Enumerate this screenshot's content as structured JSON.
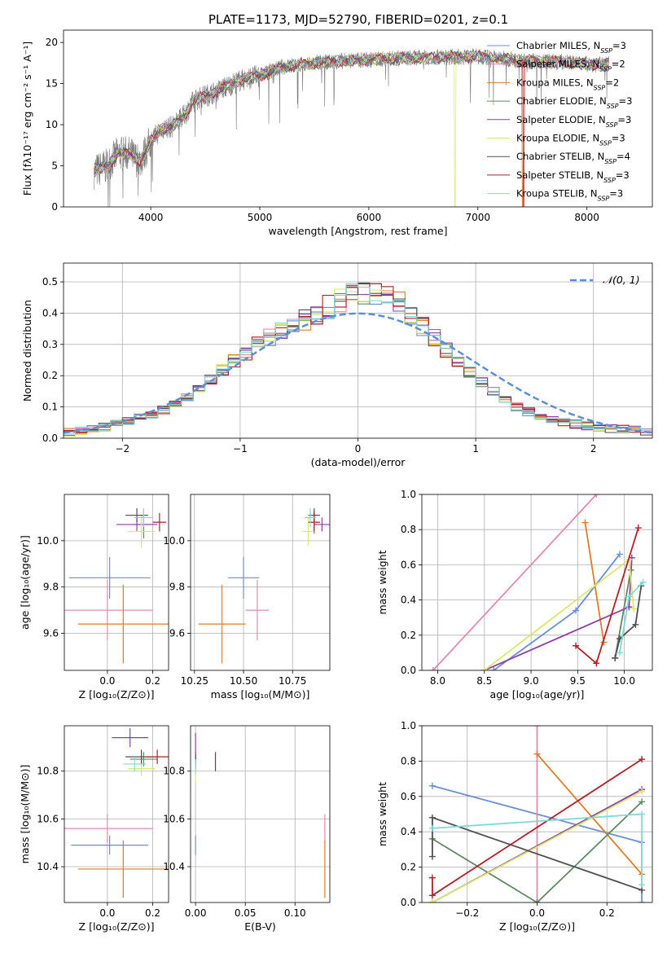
{
  "title": "PLATE=1173, MJD=52790, FIBERID=0201, z=0.1",
  "colors": {
    "Chabrier MILES": "#6b8fd6",
    "Salpeter MILES": "#e58aab",
    "Kroupa MILES": "#e07b26",
    "Chabrier ELODIE": "#5f8a62",
    "Salpeter ELODIE": "#8e3fa6",
    "Kroupa ELODIE": "#d9e86a",
    "Chabrier STELIB": "#505050",
    "Salpeter STELIB": "#b3202a",
    "Kroupa STELIB": "#7fdad6"
  },
  "chart_data": [
    {
      "type": "line",
      "xlabel": "wavelength [Angstrom, rest frame]",
      "ylabel": "Flux [fλ10⁻¹⁷ erg cm⁻² s⁻¹ A⁻¹]",
      "xlim": [
        3200,
        8600
      ],
      "ylim": [
        0,
        21.5
      ],
      "xticks": [
        "4000",
        "5000",
        "6000",
        "7000",
        "8000"
      ],
      "yticks": [
        "0",
        "5",
        "10",
        "15",
        "20"
      ],
      "grid": false,
      "legend_position": "top-right",
      "legend": [
        {
          "name": "Chabrier MILES",
          "nssp": "3"
        },
        {
          "name": "Salpeter MILES",
          "nssp": "2"
        },
        {
          "name": "Kroupa MILES",
          "nssp": "2"
        },
        {
          "name": "Chabrier ELODIE",
          "nssp": "3"
        },
        {
          "name": "Salpeter ELODIE",
          "nssp": "3"
        },
        {
          "name": "Kroupa ELODIE",
          "nssp": "3"
        },
        {
          "name": "Chabrier STELIB",
          "nssp": "4"
        },
        {
          "name": "Salpeter STELIB",
          "nssp": "3"
        },
        {
          "name": "Kroupa STELIB",
          "nssp": "3"
        }
      ],
      "continuum": {
        "x": [
          3480,
          3600,
          3700,
          3800,
          3900,
          4000,
          4100,
          4200,
          4300,
          4400,
          4600,
          4800,
          5000,
          5200,
          5500,
          5800,
          6000,
          6300,
          6600,
          7000,
          7400,
          7800,
          8100,
          8200
        ],
        "y": [
          4.3,
          5.0,
          6.5,
          6.5,
          5.5,
          8.0,
          9.5,
          9.8,
          11.0,
          13.0,
          14.0,
          15.3,
          16.0,
          17.0,
          17.5,
          17.8,
          17.9,
          18.1,
          18.2,
          18.3,
          17.8,
          17.6,
          17.3,
          17.4
        ]
      },
      "dropouts": [
        {
          "series": "Kroupa ELODIE",
          "x": 6790
        },
        {
          "series": "Kroupa MILES",
          "x": 7410
        },
        {
          "series": "Salpeter STELIB",
          "x": 7420
        }
      ]
    },
    {
      "type": "histogram",
      "xlabel": "(data-model)/error",
      "ylabel": "Normed distribution",
      "xlim": [
        -2.5,
        2.5
      ],
      "ylim": [
        0,
        0.56
      ],
      "xticks": [
        "−2",
        "−1",
        "0",
        "1",
        "2"
      ],
      "yticks": [
        "0.0",
        "0.1",
        "0.2",
        "0.3",
        "0.4",
        "0.5"
      ],
      "grid": true,
      "legend_position": "top-right",
      "legend": "𝒩(0, 1)",
      "reference_curve": "N(0,1)",
      "bin_edges_start": -2.5,
      "bin_width": 0.1,
      "envelope": [
        0.02,
        0.025,
        0.03,
        0.035,
        0.045,
        0.055,
        0.065,
        0.075,
        0.09,
        0.11,
        0.13,
        0.16,
        0.19,
        0.22,
        0.25,
        0.27,
        0.3,
        0.32,
        0.34,
        0.36,
        0.38,
        0.4,
        0.42,
        0.44,
        0.46,
        0.47,
        0.47,
        0.46,
        0.43,
        0.4,
        0.36,
        0.32,
        0.28,
        0.24,
        0.21,
        0.18,
        0.15,
        0.12,
        0.1,
        0.085,
        0.07,
        0.06,
        0.05,
        0.045,
        0.04,
        0.035,
        0.03,
        0.028,
        0.025,
        0.022
      ]
    },
    {
      "type": "errorbar",
      "xlabel": "Z [log₁₀(Z/Z⊙)]",
      "ylabel": "age  [log₁₀(age/yr)]",
      "xlim": [
        -0.19,
        0.27
      ],
      "ylim": [
        9.44,
        10.2
      ],
      "xticks": [
        "0.0",
        "0.2"
      ],
      "yticks": [
        "9.6",
        "9.8",
        "10.0"
      ],
      "grid": true,
      "points": [
        {
          "series": "Chabrier MILES",
          "x": 0.01,
          "y": 9.84,
          "xerr": 0.18,
          "yerr": 0.09
        },
        {
          "series": "Salpeter MILES",
          "x": 0.0,
          "y": 9.7,
          "xerr": 0.2,
          "yerr": 0.13
        },
        {
          "series": "Kroupa MILES",
          "x": 0.07,
          "y": 9.64,
          "xerr": 0.2,
          "yerr": 0.17
        },
        {
          "series": "Chabrier ELODIE",
          "x": 0.16,
          "y": 10.07,
          "xerr": 0.05,
          "yerr": 0.06
        },
        {
          "series": "Salpeter ELODIE",
          "x": 0.13,
          "y": 10.07,
          "xerr": 0.09,
          "yerr": 0.03
        },
        {
          "series": "Kroupa ELODIE",
          "x": 0.15,
          "y": 10.04,
          "xerr": 0.06,
          "yerr": 0.07
        },
        {
          "series": "Chabrier STELIB",
          "x": 0.13,
          "y": 10.11,
          "xerr": 0.05,
          "yerr": 0.03
        },
        {
          "series": "Salpeter STELIB",
          "x": 0.23,
          "y": 10.08,
          "xerr": 0.03,
          "yerr": 0.04
        },
        {
          "series": "Kroupa STELIB",
          "x": 0.16,
          "y": 10.1,
          "xerr": 0.04,
          "yerr": 0.04
        }
      ]
    },
    {
      "type": "errorbar",
      "xlabel": "mass [log₁₀(M/M⊙)]",
      "ylabel": "",
      "xlim": [
        10.23,
        10.94
      ],
      "ylim": [
        9.44,
        10.2
      ],
      "xticks": [
        "10.25",
        "10.50",
        "10.75"
      ],
      "yticks": [
        "9.6",
        "9.8",
        "10.0"
      ],
      "grid": true,
      "points": [
        {
          "series": "Chabrier MILES",
          "x": 10.5,
          "y": 9.84,
          "xerr": 0.08,
          "yerr": 0.09
        },
        {
          "series": "Salpeter MILES",
          "x": 10.57,
          "y": 9.7,
          "xerr": 0.06,
          "yerr": 0.13
        },
        {
          "series": "Kroupa MILES",
          "x": 10.39,
          "y": 9.64,
          "xerr": 0.12,
          "yerr": 0.17
        },
        {
          "series": "Chabrier ELODIE",
          "x": 10.86,
          "y": 10.08,
          "xerr": 0.03,
          "yerr": 0.05
        },
        {
          "series": "Salpeter ELODIE",
          "x": 10.9,
          "y": 10.07,
          "xerr": 0.04,
          "yerr": 0.03
        },
        {
          "series": "Kroupa ELODIE",
          "x": 10.83,
          "y": 10.04,
          "xerr": 0.03,
          "yerr": 0.06
        },
        {
          "series": "Chabrier STELIB",
          "x": 10.86,
          "y": 10.11,
          "xerr": 0.03,
          "yerr": 0.03
        },
        {
          "series": "Salpeter STELIB",
          "x": 10.86,
          "y": 10.08,
          "xerr": 0.03,
          "yerr": 0.04
        },
        {
          "series": "Kroupa STELIB",
          "x": 10.84,
          "y": 10.1,
          "xerr": 0.03,
          "yerr": 0.04
        }
      ]
    },
    {
      "type": "line",
      "xlabel": "age  [log₁₀(age/yr)]",
      "ylabel": "mass weight",
      "xlim": [
        7.83,
        10.3
      ],
      "ylim": [
        0,
        1
      ],
      "xticks": [
        "8.0",
        "8.5",
        "9.0",
        "9.5",
        "10.0"
      ],
      "yticks": [
        "0.0",
        "0.2",
        "0.4",
        "0.6",
        "0.8",
        "1.0"
      ],
      "grid": true,
      "series": [
        {
          "name": "Chabrier MILES",
          "x": [
            8.6,
            9.48,
            9.95
          ],
          "y": [
            0.0,
            0.34,
            0.66
          ]
        },
        {
          "name": "Salpeter MILES",
          "x": [
            7.95,
            9.7
          ],
          "y": [
            0.0,
            1.0
          ]
        },
        {
          "name": "Kroupa MILES",
          "x": [
            9.58,
            9.78
          ],
          "y": [
            0.84,
            0.16
          ]
        },
        {
          "name": "Chabrier ELODIE",
          "x": [
            9.9,
            10.07
          ],
          "y": [
            0.07,
            0.57
          ]
        },
        {
          "name": "Salpeter ELODIE",
          "x": [
            8.5,
            10.05,
            10.08
          ],
          "y": [
            0.0,
            0.36,
            0.64
          ]
        },
        {
          "name": "Kroupa ELODIE",
          "x": [
            8.5,
            10.05,
            10.1
          ],
          "y": [
            0.0,
            0.63,
            0.35
          ]
        },
        {
          "name": "Chabrier STELIB",
          "x": [
            9.9,
            9.95,
            10.12,
            10.18
          ],
          "y": [
            0.07,
            0.18,
            0.26,
            0.48
          ]
        },
        {
          "name": "Salpeter STELIB",
          "x": [
            9.48,
            9.7,
            10.15
          ],
          "y": [
            0.14,
            0.04,
            0.81
          ]
        },
        {
          "name": "Kroupa STELIB",
          "x": [
            9.95,
            10.05,
            10.2
          ],
          "y": [
            0.1,
            0.42,
            0.5
          ]
        }
      ]
    },
    {
      "type": "errorbar",
      "xlabel": "Z [log₁₀(Z/Z⊙)]",
      "ylabel": "mass [log₁₀(M/M⊙)]",
      "xlim": [
        -0.19,
        0.27
      ],
      "ylim": [
        10.25,
        10.99
      ],
      "xticks": [
        "0.0",
        "0.2"
      ],
      "yticks": [
        "10.4",
        "10.6",
        "10.8"
      ],
      "grid": true,
      "points": [
        {
          "series": "Chabrier MILES",
          "x": 0.01,
          "y": 10.49,
          "xerr": 0.17,
          "yerr": 0.04
        },
        {
          "series": "Salpeter MILES",
          "x": 0.0,
          "y": 10.56,
          "xerr": 0.2,
          "yerr": 0.06
        },
        {
          "series": "Kroupa MILES",
          "x": 0.07,
          "y": 10.39,
          "xerr": 0.2,
          "yerr": 0.12
        },
        {
          "series": "Chabrier ELODIE",
          "x": 0.16,
          "y": 10.85,
          "xerr": 0.06,
          "yerr": 0.03
        },
        {
          "series": "Salpeter ELODIE",
          "x": 0.1,
          "y": 10.94,
          "xerr": 0.08,
          "yerr": 0.04
        },
        {
          "series": "Kroupa ELODIE",
          "x": 0.15,
          "y": 10.81,
          "xerr": 0.06,
          "yerr": 0.03
        },
        {
          "series": "Chabrier STELIB",
          "x": 0.15,
          "y": 10.86,
          "xerr": 0.07,
          "yerr": 0.03
        },
        {
          "series": "Salpeter STELIB",
          "x": 0.22,
          "y": 10.86,
          "xerr": 0.05,
          "yerr": 0.03
        },
        {
          "series": "Kroupa STELIB",
          "x": 0.12,
          "y": 10.83,
          "xerr": 0.05,
          "yerr": 0.03
        }
      ]
    },
    {
      "type": "errorbar",
      "xlabel": "E(B-V)",
      "ylabel": "",
      "xlim": [
        -0.005,
        0.135
      ],
      "ylim": [
        10.25,
        10.99
      ],
      "xticks": [
        "0.00",
        "0.05",
        "0.10"
      ],
      "yticks": [
        "10.4",
        "10.6",
        "10.8"
      ],
      "grid": true,
      "points": [
        {
          "series": "Chabrier MILES",
          "x": 0.0,
          "y": 10.49,
          "xerr": 0,
          "yerr": 0.04
        },
        {
          "series": "Salpeter MILES",
          "x": 0.13,
          "y": 10.56,
          "xerr": 0,
          "yerr": 0.06
        },
        {
          "series": "Kroupa MILES",
          "x": 0.13,
          "y": 10.39,
          "xerr": 0,
          "yerr": 0.12
        },
        {
          "series": "Chabrier ELODIE",
          "x": 0.0,
          "y": 10.85,
          "xerr": 0,
          "yerr": 0.03
        },
        {
          "series": "Salpeter ELODIE",
          "x": 0.0,
          "y": 10.9,
          "xerr": 0,
          "yerr": 0.06
        },
        {
          "series": "Kroupa ELODIE",
          "x": 0.0,
          "y": 10.78,
          "xerr": 0,
          "yerr": 0.03
        },
        {
          "series": "Chabrier STELIB",
          "x": 0.0,
          "y": 10.84,
          "xerr": 0,
          "yerr": 0.03
        },
        {
          "series": "Salpeter STELIB",
          "x": 0.02,
          "y": 10.84,
          "xerr": 0,
          "yerr": 0.04
        },
        {
          "series": "Kroupa STELIB",
          "x": 0.0,
          "y": 10.82,
          "xerr": 0,
          "yerr": 0.03
        }
      ]
    },
    {
      "type": "line",
      "xlabel": "Z [log₁₀(Z/Z⊙)]",
      "ylabel": "mass weight",
      "xlim": [
        -0.33,
        0.33
      ],
      "ylim": [
        0,
        1
      ],
      "xticks": [
        "−0.2",
        "0.0",
        "0.2"
      ],
      "yticks": [
        "0.0",
        "0.2",
        "0.4",
        "0.6",
        "0.8",
        "1.0"
      ],
      "grid": true,
      "series": [
        {
          "name": "Chabrier MILES",
          "x": [
            -0.3,
            0.3,
            0.3
          ],
          "y": [
            0.66,
            0.34,
            0.0
          ]
        },
        {
          "name": "Salpeter MILES",
          "x": [
            0.0,
            0.0
          ],
          "y": [
            0.0,
            1.0
          ]
        },
        {
          "name": "Kroupa MILES",
          "x": [
            0.0,
            0.3
          ],
          "y": [
            0.84,
            0.16
          ]
        },
        {
          "name": "Chabrier ELODIE",
          "x": [
            -0.3,
            0.0,
            0.3
          ],
          "y": [
            0.36,
            0.0,
            0.57
          ]
        },
        {
          "name": "Salpeter ELODIE",
          "x": [
            -0.3,
            0.3
          ],
          "y": [
            0.0,
            0.64
          ]
        },
        {
          "name": "Kroupa ELODIE",
          "x": [
            -0.3,
            0.3
          ],
          "y": [
            0.0,
            0.63
          ]
        },
        {
          "name": "Chabrier STELIB",
          "x": [
            -0.3,
            -0.3,
            0.3
          ],
          "y": [
            0.26,
            0.48,
            0.07
          ]
        },
        {
          "name": "Salpeter STELIB",
          "x": [
            -0.3,
            -0.3,
            0.3
          ],
          "y": [
            0.14,
            0.04,
            0.81
          ]
        },
        {
          "name": "Kroupa STELIB",
          "x": [
            -0.3,
            0.3,
            0.3
          ],
          "y": [
            0.42,
            0.5,
            0.1
          ]
        }
      ]
    }
  ]
}
